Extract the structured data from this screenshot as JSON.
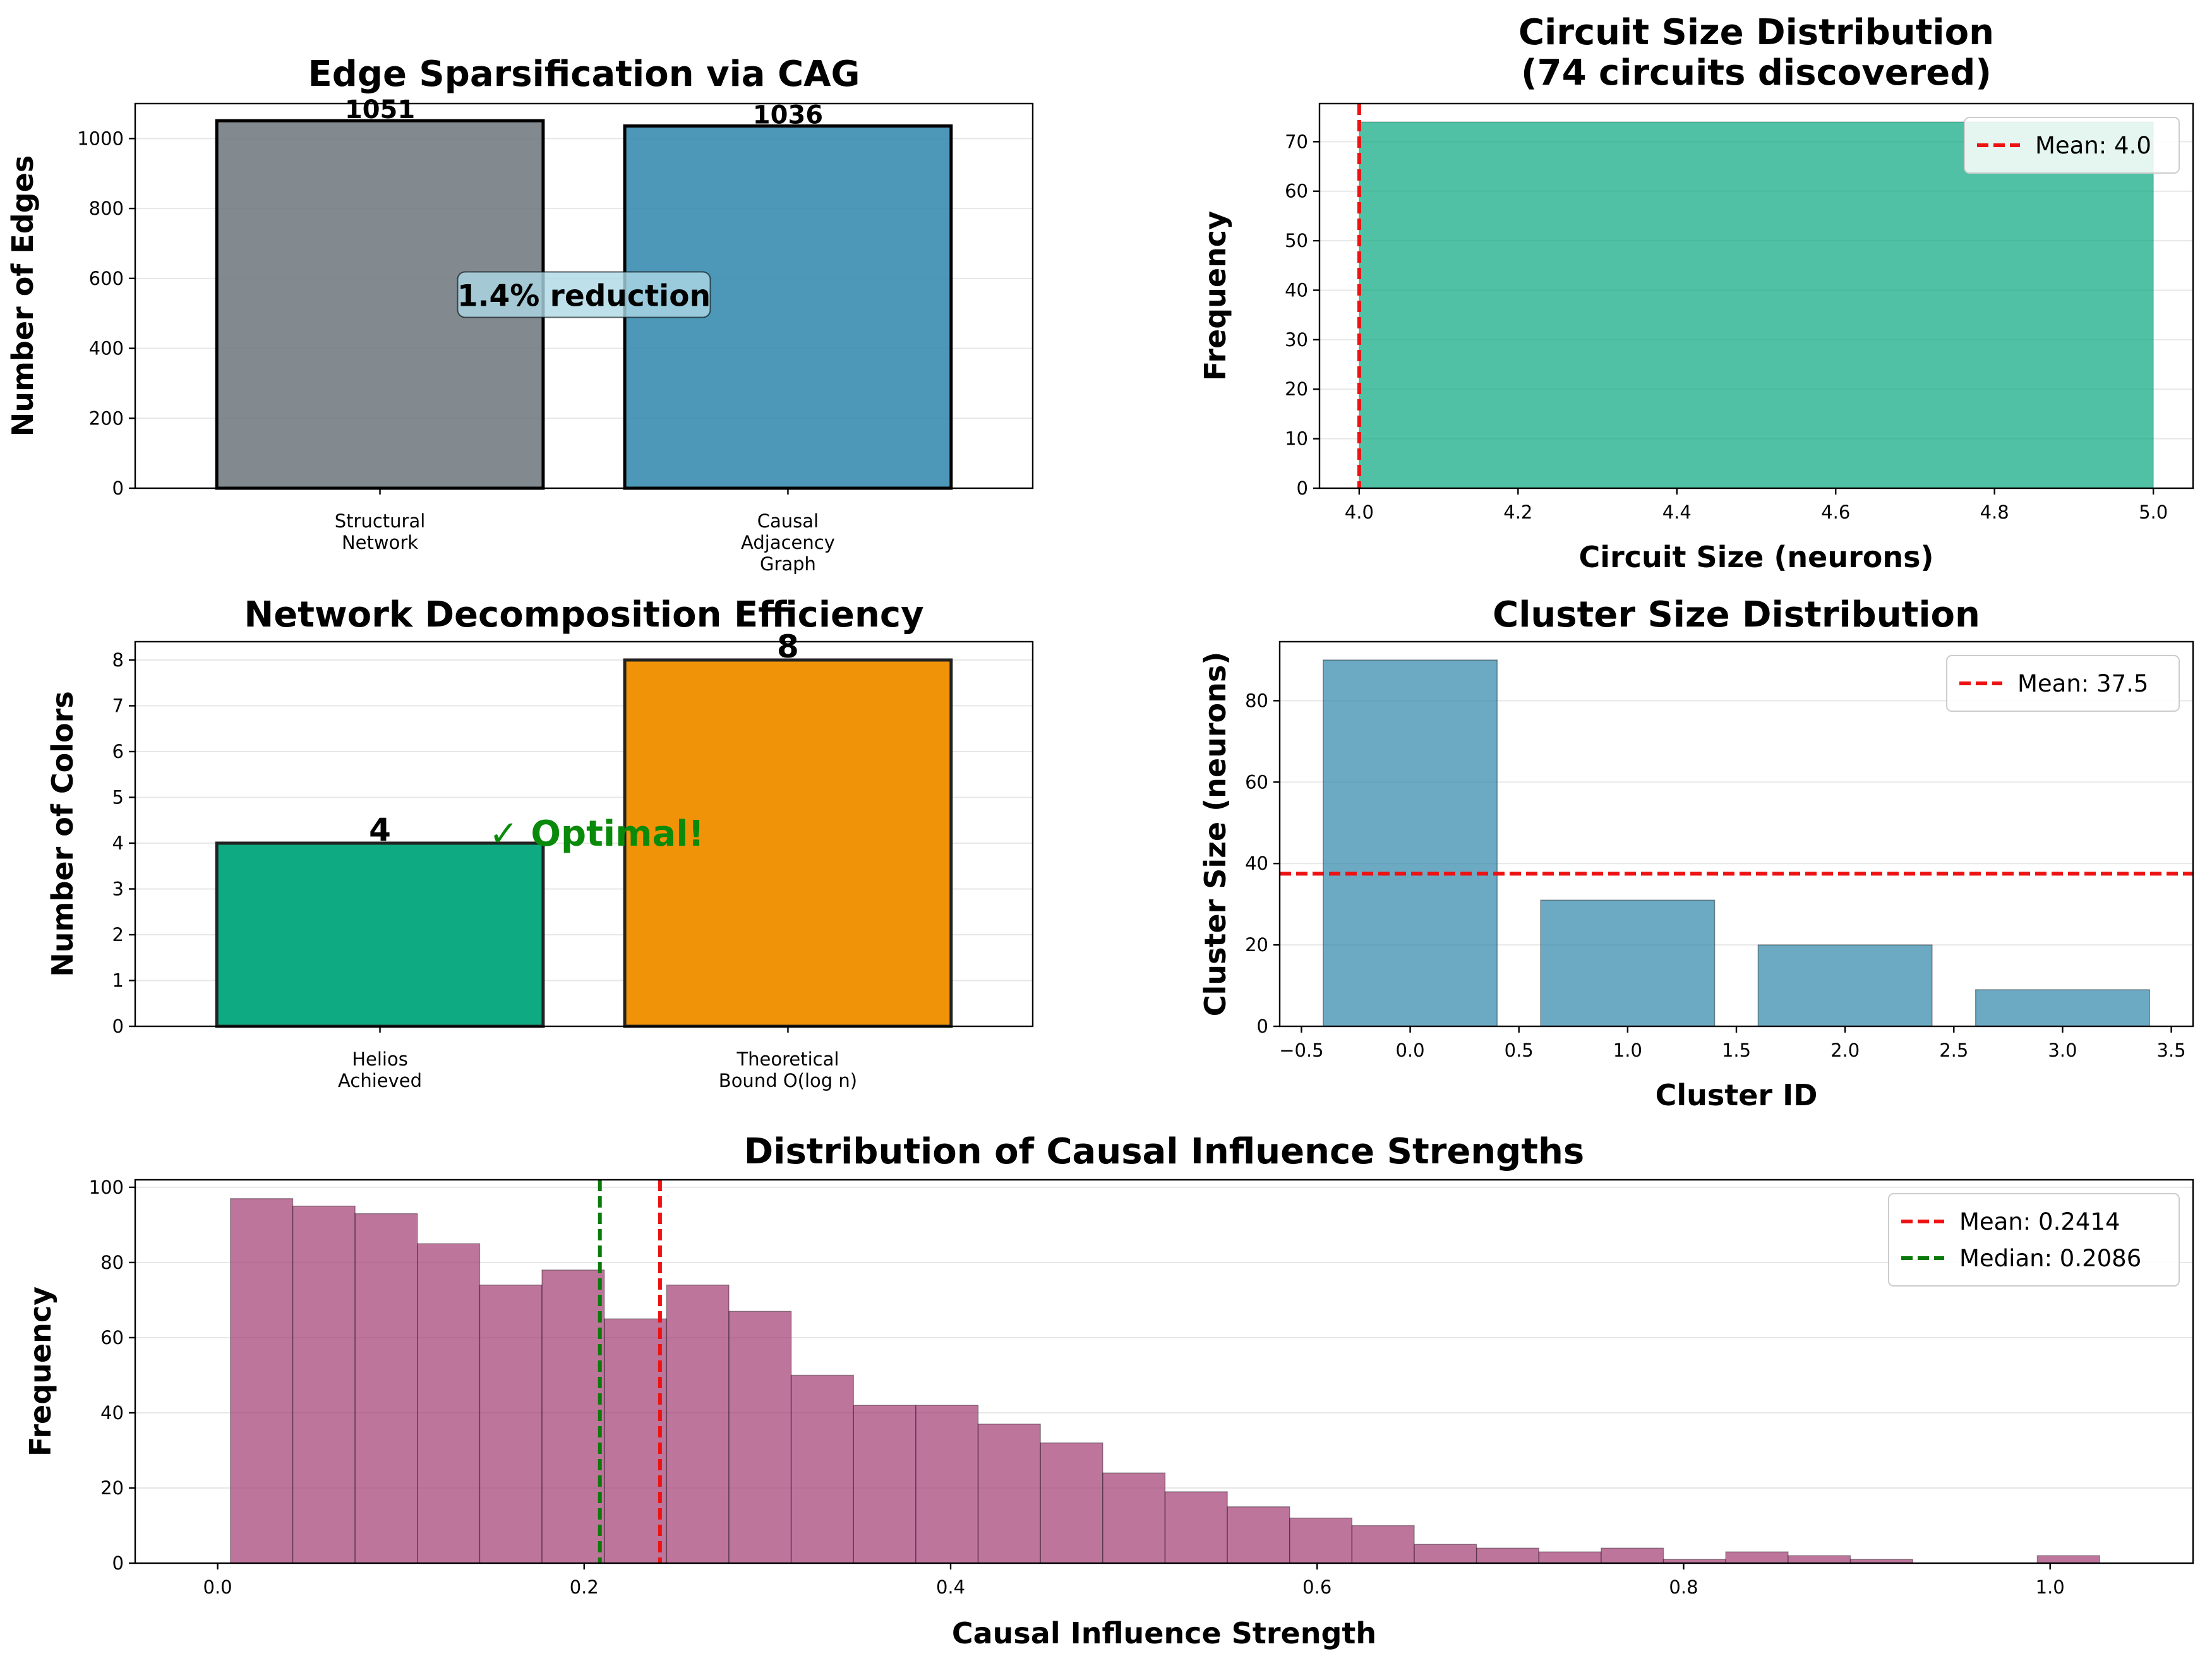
{
  "charts": [
    {
      "id": "p1",
      "type": "bar",
      "title": "Edge Sparsification via CAG",
      "xlabel": "",
      "ylabel": "Number of Edges",
      "ylim": [
        0,
        1100
      ],
      "yticks": [
        0,
        200,
        400,
        600,
        800,
        1000
      ],
      "grid": "y",
      "categories": [
        "Structural\nNetwork",
        "Causal\nAdjacency\nGraph"
      ],
      "values": [
        1051,
        1036
      ],
      "value_labels": [
        "1051",
        "1036"
      ],
      "colors": [
        "#6c757d",
        "#2e86ab"
      ],
      "annotation": "1.4% reduction"
    },
    {
      "id": "p2",
      "type": "bar",
      "title": "Circuit Size Distribution\n(74 circuits discovered)",
      "xlabel": "Circuit Size (neurons)",
      "ylabel": "Frequency",
      "xlim": [
        3.95,
        5.05
      ],
      "ylim": [
        0,
        77.7
      ],
      "xticks": [
        "4.0",
        "4.2",
        "4.4",
        "4.6",
        "4.8",
        "5.0"
      ],
      "yticks": [
        0,
        10,
        20,
        30,
        40,
        50,
        60,
        70
      ],
      "grid": "y",
      "bins": [
        {
          "x0": 4.0,
          "x1": 5.0,
          "count": 74
        }
      ],
      "color": "#06a77d",
      "mean": 4.0,
      "legend": [
        "Mean: 4.0"
      ],
      "legend_position": "upper right"
    },
    {
      "id": "p3",
      "type": "bar",
      "title": "Network Decomposition Efficiency",
      "xlabel": "",
      "ylabel": "Number of Colors",
      "ylim": [
        0,
        8.4
      ],
      "yticks": [
        0,
        1,
        2,
        3,
        4,
        5,
        6,
        7,
        8
      ],
      "grid": "y",
      "categories": [
        "Helios\nAchieved",
        "Theoretical\nBound O(log n)"
      ],
      "values": [
        4,
        8
      ],
      "value_labels": [
        "4",
        "8"
      ],
      "colors": [
        "#06a77d",
        "#f18f01"
      ],
      "annotation": "✓ Optimal!"
    },
    {
      "id": "p4",
      "type": "bar",
      "title": "Cluster Size Distribution",
      "xlabel": "Cluster ID",
      "ylabel": "Cluster Size (neurons)",
      "xlim": [
        -0.6,
        3.6
      ],
      "ylim": [
        0,
        94.5
      ],
      "xticks": [
        "−0.5",
        "0.0",
        "0.5",
        "1.0",
        "1.5",
        "2.0",
        "2.5",
        "3.0",
        "3.5"
      ],
      "yticks": [
        0,
        20,
        40,
        60,
        80
      ],
      "grid": "y",
      "x": [
        0,
        1,
        2,
        3
      ],
      "values": [
        90,
        31,
        20,
        9
      ],
      "color": "#2e86ab",
      "mean": 37.5,
      "legend": [
        "Mean: 37.5"
      ],
      "legend_position": "upper right"
    },
    {
      "id": "p5",
      "type": "histogram",
      "title": "Distribution of Causal Influence Strengths",
      "xlabel": "Causal Influence Strength",
      "ylabel": "Frequency",
      "xlim": [
        -0.045,
        1.078
      ],
      "ylim": [
        0,
        102
      ],
      "xticks": [
        "0.0",
        "0.2",
        "0.4",
        "0.6",
        "0.8",
        "1.0"
      ],
      "yticks": [
        0,
        20,
        40,
        60,
        80,
        100
      ],
      "grid": "y",
      "bin_start": 0.007,
      "bin_width": 0.034,
      "counts": [
        97,
        95,
        93,
        85,
        74,
        78,
        65,
        74,
        67,
        50,
        42,
        42,
        37,
        32,
        24,
        19,
        15,
        12,
        10,
        5,
        4,
        3,
        4,
        1,
        3,
        2,
        1,
        0,
        0,
        2
      ],
      "color": "#a23b72",
      "mean": 0.2414,
      "median": 0.2086,
      "legend": [
        "Mean: 0.2414",
        "Median: 0.2086"
      ],
      "legend_position": "upper right"
    }
  ]
}
